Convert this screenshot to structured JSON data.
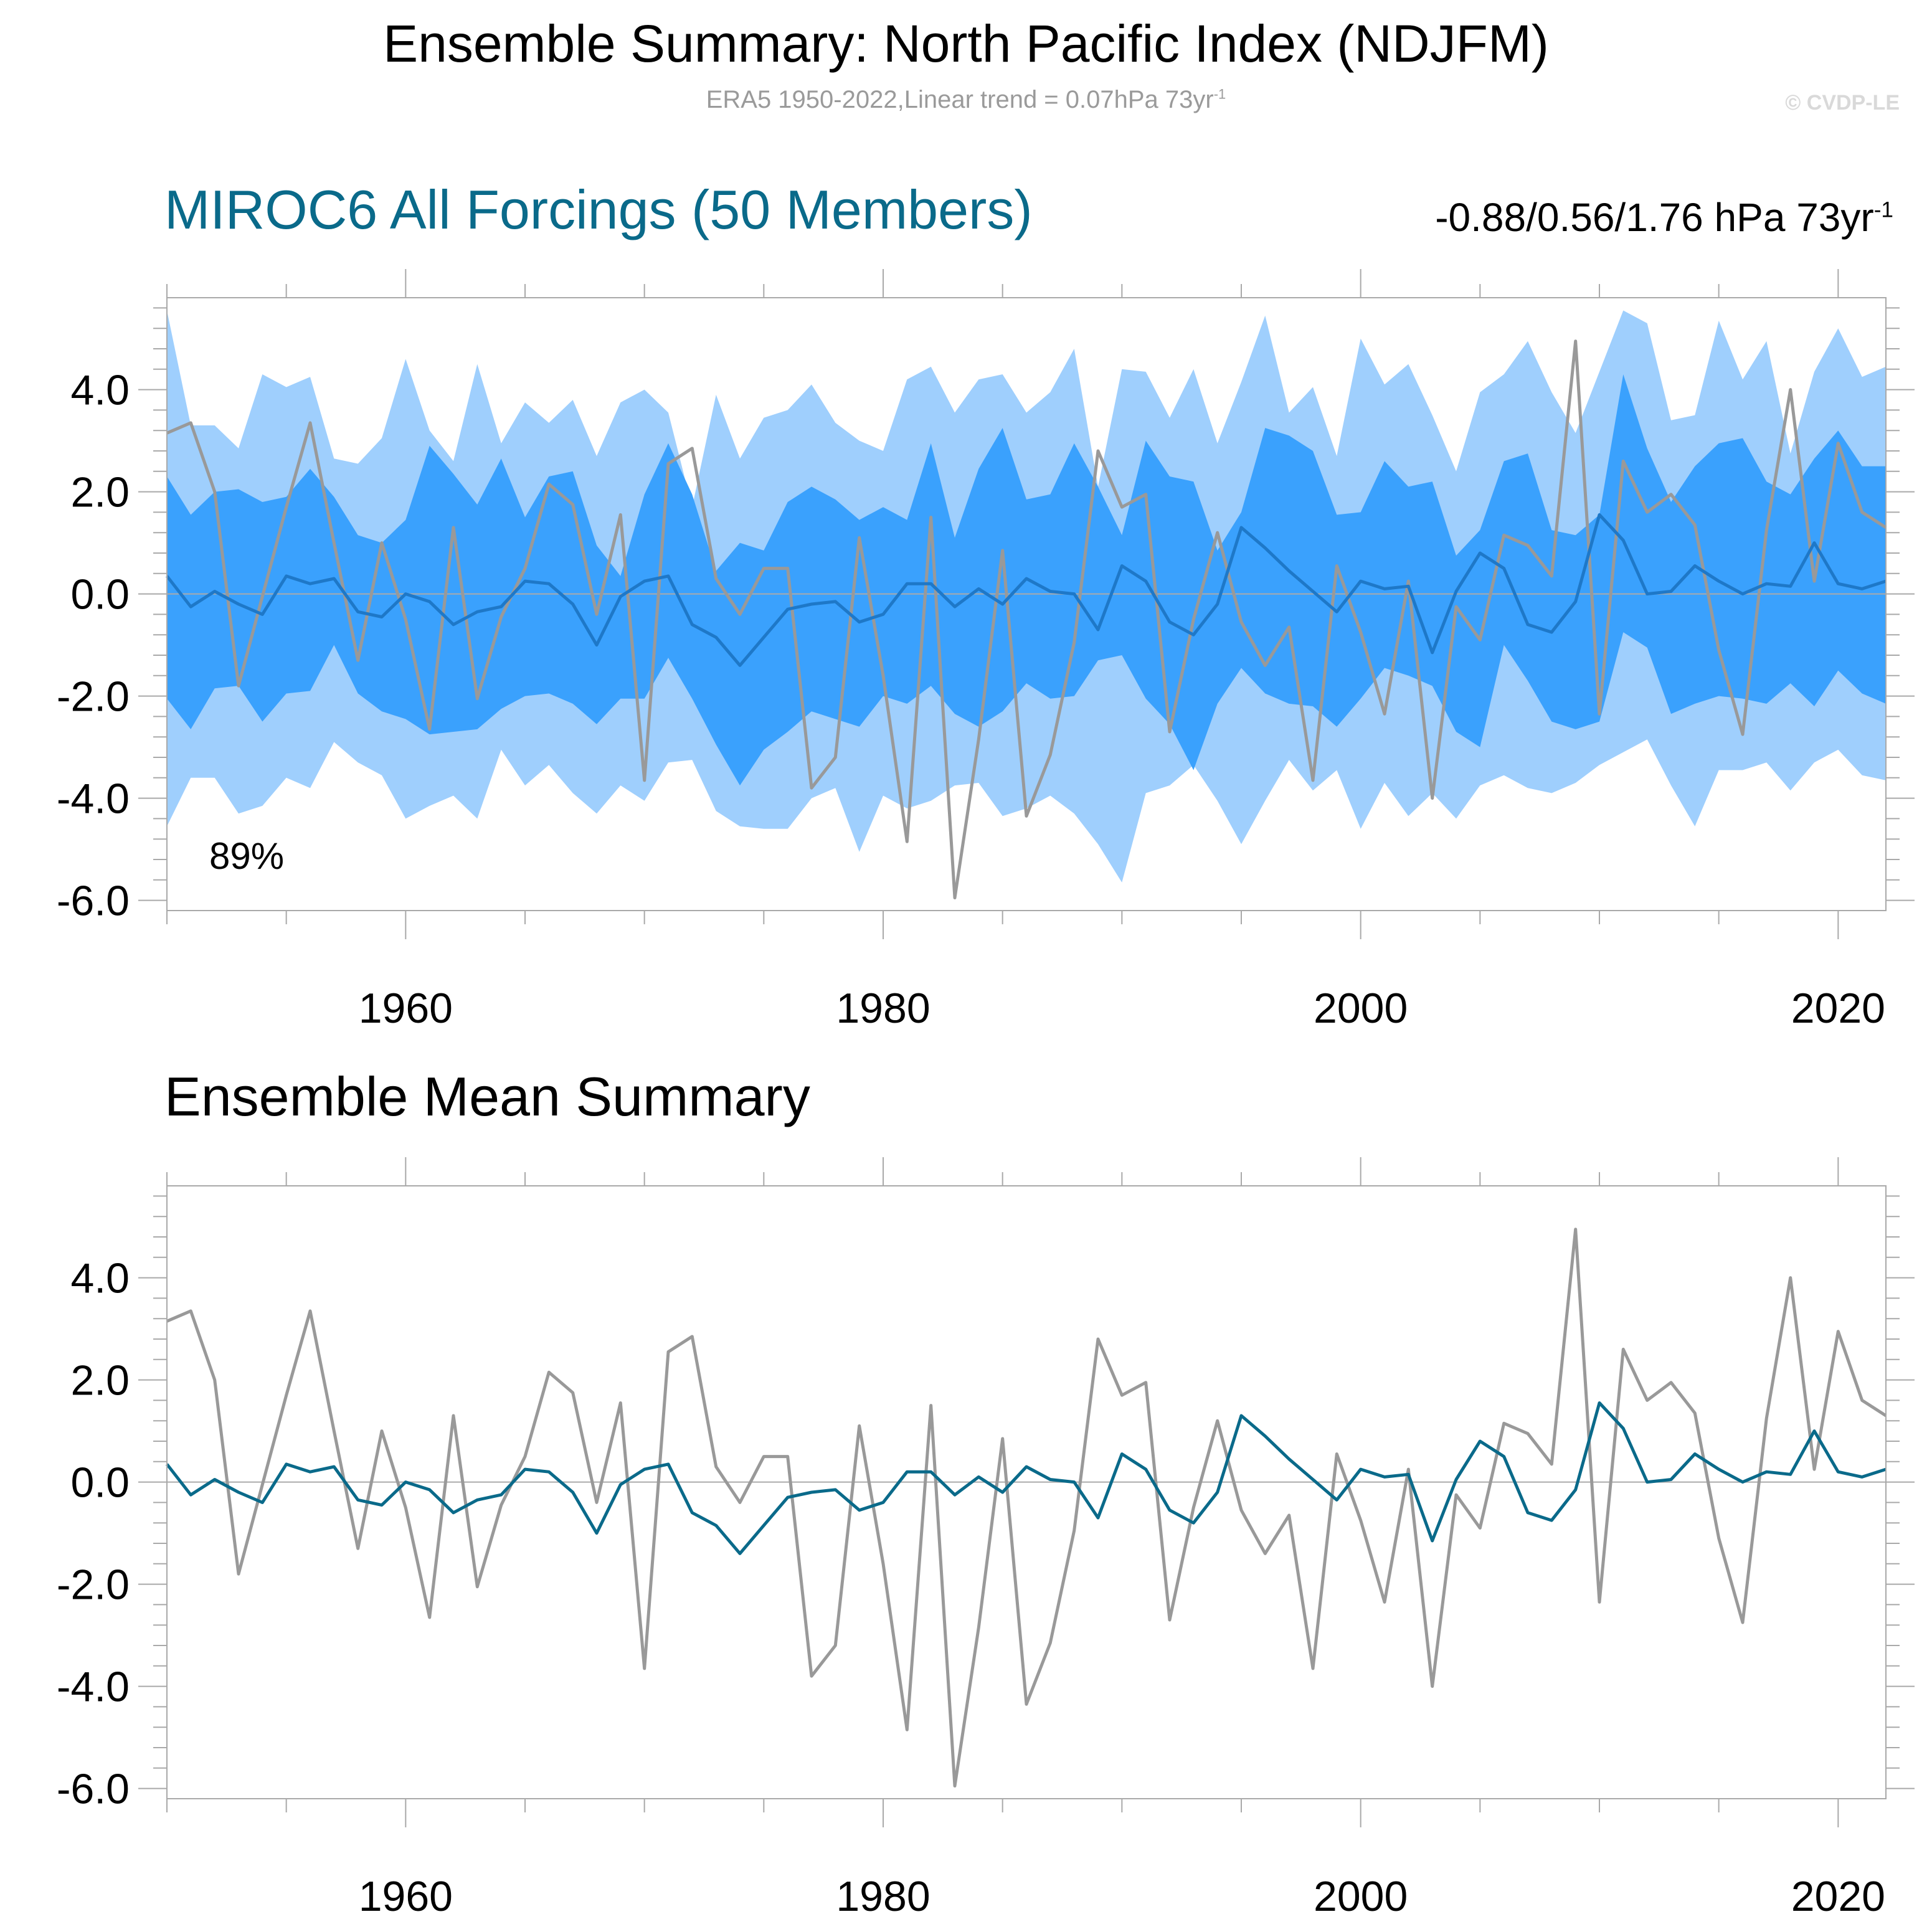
{
  "header": {
    "title": "Ensemble Summary: North Pacific Index (NDJFM)",
    "subtitle": "ERA5 1950-2022,Linear trend = 0.07hPa 73yr",
    "subtitle_sup": "-1",
    "credit": "© CVDP-LE"
  },
  "panel1": {
    "title": "MIROC6 All Forcings (50 Members)",
    "trend_text": "-0.88/0.56/1.76 hPa 73yr",
    "trend_sup": "-1",
    "percent_label": "89%"
  },
  "panel2": {
    "title": "Ensemble Mean Summary"
  },
  "colors": {
    "outer_band": "#9fcffd",
    "inner_band": "#3aa1fd",
    "ens_mean_panel1": "#1e78c8",
    "ens_mean_panel2": "#0a6a8a",
    "observed": "#999999",
    "title_accent": "#0a6a8a"
  },
  "chart_data": [
    {
      "type": "area",
      "title": "MIROC6 All Forcings (50 Members)",
      "years_start": 1950,
      "years_end": 2022,
      "xlim": [
        1950,
        2022
      ],
      "ylim": [
        -6.2,
        5.8
      ],
      "x_ticks": [
        1960,
        1980,
        2000,
        2020
      ],
      "y_ticks": [
        -6,
        -4,
        -2,
        0,
        2,
        4
      ],
      "tick_labels_y": [
        "-6.0",
        "-4.0",
        "-2.0",
        "0.0",
        "2.0",
        "4.0"
      ],
      "tick_labels_x": [
        "1960",
        "1980",
        "2000",
        "2020"
      ],
      "series": [
        {
          "role": "outer_upper",
          "values": [
            5.55,
            3.3,
            3.3,
            2.85,
            4.3,
            4.05,
            4.25,
            2.65,
            2.55,
            3.05,
            4.6,
            3.2,
            2.6,
            4.5,
            2.95,
            3.75,
            3.35,
            3.8,
            2.7,
            3.75,
            4.0,
            3.55,
            1.7,
            3.9,
            2.65,
            3.45,
            3.6,
            4.1,
            3.35,
            3.0,
            2.8,
            4.2,
            4.45,
            3.55,
            4.2,
            4.3,
            3.55,
            3.95,
            4.8,
            2.1,
            4.4,
            4.35,
            3.45,
            4.4,
            2.95,
            4.15,
            5.45,
            3.55,
            4.05,
            2.7,
            5.0,
            4.1,
            4.5,
            3.5,
            2.4,
            3.95,
            4.3,
            4.95,
            3.95,
            3.15,
            4.35,
            5.55,
            5.3,
            3.4,
            3.5,
            5.35,
            4.2,
            4.95,
            2.75,
            4.35,
            5.2,
            4.25,
            4.45
          ]
        },
        {
          "role": "inner_upper",
          "values": [
            2.3,
            1.55,
            2.0,
            2.05,
            1.8,
            1.9,
            2.45,
            1.9,
            1.15,
            1.0,
            1.45,
            2.9,
            2.35,
            1.75,
            2.65,
            1.5,
            2.3,
            2.4,
            0.95,
            0.35,
            1.95,
            2.95,
            1.95,
            0.45,
            1.0,
            0.85,
            1.8,
            2.1,
            1.85,
            1.45,
            1.7,
            1.45,
            2.95,
            1.1,
            2.45,
            3.25,
            1.85,
            1.95,
            2.95,
            2.1,
            1.15,
            3.0,
            2.3,
            2.2,
            0.85,
            1.6,
            3.25,
            3.1,
            2.8,
            1.55,
            1.6,
            2.6,
            2.1,
            2.2,
            0.75,
            1.25,
            2.6,
            2.75,
            1.25,
            1.15,
            1.55,
            4.3,
            2.85,
            1.8,
            2.5,
            2.95,
            3.05,
            2.2,
            1.95,
            2.65,
            3.2,
            2.5,
            2.5
          ]
        },
        {
          "role": "inner_lower",
          "values": [
            -2.05,
            -2.65,
            -1.85,
            -1.8,
            -2.5,
            -1.95,
            -1.9,
            -1.0,
            -1.95,
            -2.3,
            -2.45,
            -2.75,
            -2.7,
            -2.65,
            -2.25,
            -2.0,
            -1.95,
            -2.15,
            -2.55,
            -2.05,
            -2.05,
            -1.25,
            -2.05,
            -2.95,
            -3.75,
            -3.05,
            -2.7,
            -2.3,
            -2.45,
            -2.6,
            -2.0,
            -2.15,
            -1.8,
            -2.35,
            -2.6,
            -2.3,
            -1.75,
            -2.05,
            -2.0,
            -1.3,
            -1.2,
            -2.05,
            -2.55,
            -3.45,
            -2.15,
            -1.45,
            -1.95,
            -2.15,
            -2.2,
            -2.6,
            -2.05,
            -1.45,
            -1.6,
            -1.8,
            -2.7,
            -3.0,
            -1.0,
            -1.7,
            -2.5,
            -2.65,
            -2.5,
            -0.75,
            -1.05,
            -2.35,
            -2.15,
            -2.0,
            -2.05,
            -2.15,
            -1.75,
            -2.2,
            -1.5,
            -1.95,
            -2.15
          ]
        },
        {
          "role": "outer_lower",
          "values": [
            -4.55,
            -3.6,
            -3.6,
            -4.3,
            -4.15,
            -3.6,
            -3.8,
            -2.9,
            -3.3,
            -3.55,
            -4.4,
            -4.15,
            -3.95,
            -4.4,
            -3.05,
            -3.75,
            -3.35,
            -3.9,
            -4.3,
            -3.75,
            -4.05,
            -3.3,
            -3.25,
            -4.25,
            -4.55,
            -4.6,
            -4.6,
            -4.0,
            -3.8,
            -5.05,
            -3.95,
            -4.2,
            -4.05,
            -3.75,
            -3.7,
            -4.35,
            -4.2,
            -3.95,
            -4.3,
            -4.9,
            -5.65,
            -3.9,
            -3.75,
            -3.35,
            -4.05,
            -4.9,
            -4.05,
            -3.25,
            -3.85,
            -3.45,
            -4.6,
            -3.7,
            -4.35,
            -3.9,
            -4.4,
            -3.75,
            -3.55,
            -3.8,
            -3.9,
            -3.7,
            -3.35,
            -3.1,
            -2.85,
            -3.75,
            -4.55,
            -3.45,
            -3.45,
            -3.3,
            -3.85,
            -3.3,
            -3.05,
            -3.55,
            -3.65
          ]
        },
        {
          "name": "Ensemble mean",
          "role": "mean",
          "values": [
            0.35,
            -0.25,
            0.05,
            -0.2,
            -0.4,
            0.35,
            0.2,
            0.3,
            -0.35,
            -0.45,
            0.0,
            -0.15,
            -0.6,
            -0.35,
            -0.25,
            0.25,
            0.2,
            -0.2,
            -1.0,
            -0.05,
            0.25,
            0.35,
            -0.6,
            -0.85,
            -1.4,
            -0.85,
            -0.3,
            -0.2,
            -0.15,
            -0.55,
            -0.4,
            0.2,
            0.2,
            -0.25,
            0.1,
            -0.2,
            0.3,
            0.05,
            0.0,
            -0.7,
            0.55,
            0.25,
            -0.55,
            -0.8,
            -0.2,
            1.3,
            0.9,
            0.45,
            0.05,
            -0.35,
            0.25,
            0.1,
            0.15,
            -1.15,
            0.05,
            0.8,
            0.5,
            -0.6,
            -0.75,
            -0.15,
            1.55,
            1.05,
            0.0,
            0.05,
            0.55,
            0.25,
            0.0,
            0.2,
            0.15,
            1.0,
            0.2,
            0.1,
            0.25
          ]
        },
        {
          "name": "ERA5",
          "role": "observed",
          "values": [
            3.15,
            3.35,
            2.0,
            -1.8,
            -0.05,
            1.7,
            3.35,
            1.0,
            -1.3,
            1.0,
            -0.5,
            -2.65,
            1.3,
            -2.05,
            -0.45,
            0.5,
            2.15,
            1.75,
            -0.4,
            1.55,
            -3.65,
            2.55,
            2.85,
            0.3,
            -0.4,
            0.5,
            0.5,
            -3.8,
            -3.2,
            1.1,
            -1.6,
            -4.85,
            1.5,
            -5.95,
            -2.85,
            0.85,
            -4.35,
            -3.15,
            -0.95,
            2.8,
            1.7,
            1.95,
            -2.7,
            -0.5,
            1.2,
            -0.55,
            -1.4,
            -0.65,
            -3.65,
            0.55,
            -0.75,
            -2.35,
            0.25,
            -4.0,
            -0.25,
            -0.9,
            1.15,
            0.95,
            0.35,
            4.95,
            -2.35,
            2.6,
            1.6,
            1.95,
            1.35,
            -1.1,
            -2.75,
            1.25,
            4.0,
            0.25,
            2.95,
            1.6,
            1.3
          ]
        }
      ]
    },
    {
      "type": "line",
      "title": "Ensemble Mean Summary",
      "xlim": [
        1950,
        2022
      ],
      "ylim": [
        -6.2,
        5.8
      ],
      "x_ticks": [
        1960,
        1980,
        2000,
        2020
      ],
      "y_ticks": [
        -6,
        -4,
        -2,
        0,
        2,
        4
      ],
      "tick_labels_y": [
        "-6.0",
        "-4.0",
        "-2.0",
        "0.0",
        "2.0",
        "4.0"
      ],
      "tick_labels_x": [
        "1960",
        "1980",
        "2000",
        "2020"
      ],
      "series_ref": "same ensemble mean and ERA5 values as panel 1"
    }
  ]
}
